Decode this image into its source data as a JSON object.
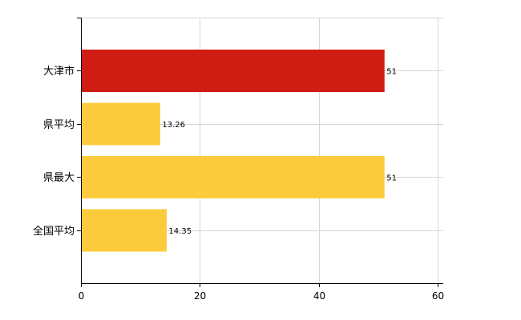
{
  "chart_data": {
    "type": "bar",
    "orientation": "horizontal",
    "categories": [
      "大津市",
      "県平均",
      "県最大",
      "全国平均"
    ],
    "values": [
      51,
      13.26,
      51,
      14.35
    ],
    "value_labels": [
      "51",
      "13.26",
      "51",
      "14.35"
    ],
    "bar_colors": [
      "#d01d14",
      "#fccb3c",
      "#fccb3c",
      "#fccb3c"
    ],
    "xlim": [
      0,
      60
    ],
    "xticks": [
      0,
      20,
      40,
      60
    ],
    "xtick_labels": [
      "0",
      "20",
      "40",
      "60"
    ],
    "grid": true,
    "legend": "none"
  }
}
